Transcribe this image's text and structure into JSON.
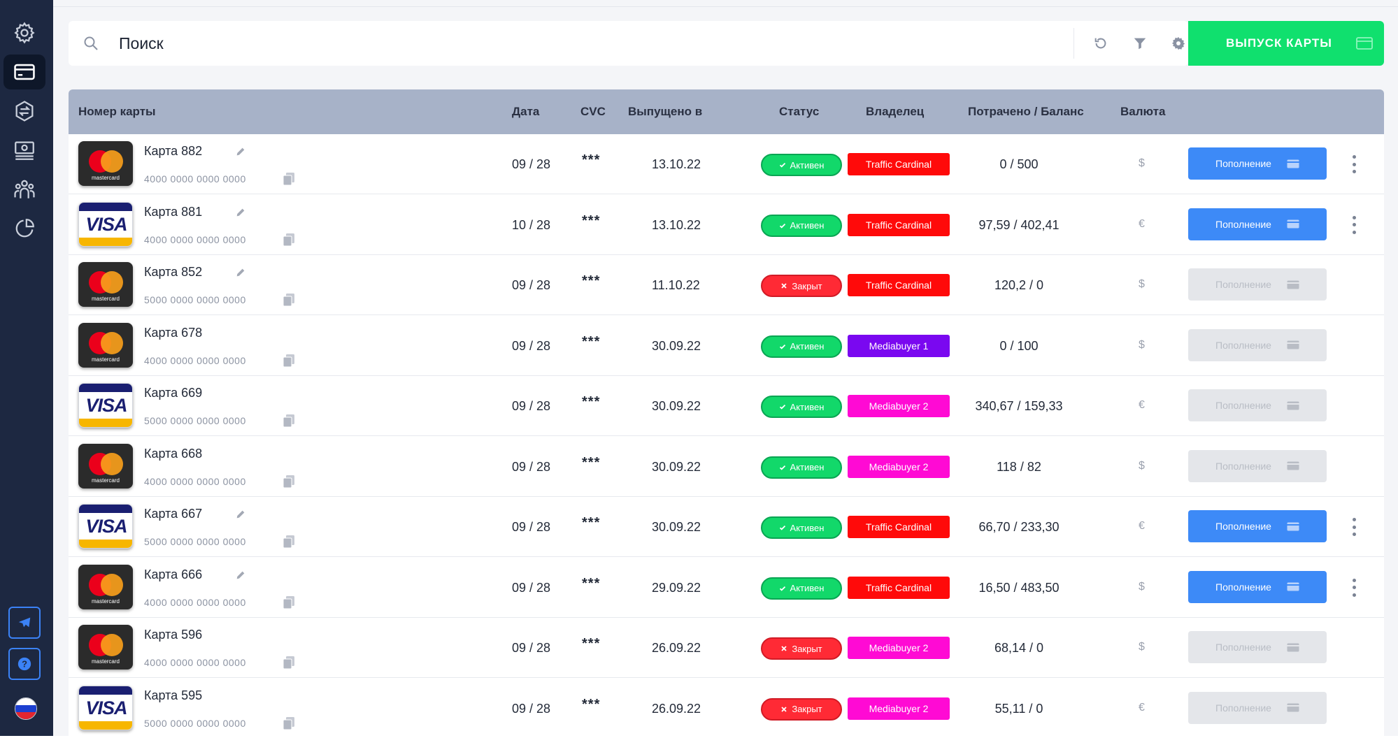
{
  "sidebar": {
    "items": [
      {
        "icon": "settings-gear-icon",
        "active": false
      },
      {
        "icon": "card-icon",
        "active": true
      },
      {
        "icon": "exchange-icon",
        "active": false
      },
      {
        "icon": "money-icon",
        "active": false
      },
      {
        "icon": "team-icon",
        "active": false
      },
      {
        "icon": "pie-chart-icon",
        "active": false
      }
    ],
    "bottom": [
      {
        "icon": "telegram-icon"
      },
      {
        "icon": "help-icon",
        "label": "?"
      },
      {
        "icon": "russia-flag-icon"
      }
    ]
  },
  "search": {
    "placeholder": "Поиск"
  },
  "toolbar": {
    "refresh_icon": "refresh-icon",
    "filter_icon": "filter-icon",
    "settings_icon": "gear-icon",
    "issue_button_label": "ВЫПУСК КАРТЫ"
  },
  "table": {
    "headers": {
      "card_number": "Номер карты",
      "date": "Дата",
      "cvc": "CVC",
      "issued": "Выпущено в",
      "status": "Статус",
      "owner": "Владелец",
      "spent_balance": "Потрачено / Баланс",
      "currency": "Валюта"
    },
    "topup_label": "Пополнение",
    "brand_labels": {
      "mastercard": "mastercard",
      "visa": "VISA"
    },
    "rows": [
      {
        "brand": "mastercard",
        "name": "Карта 882",
        "number": "4000 0000 0000 0000",
        "date": "09 / 28",
        "cvc": "***",
        "issued": "13.10.22",
        "status": "Активен",
        "status_type": "active",
        "owner": "Traffic Cardinal",
        "owner_color": "#ff0a0a",
        "spent_balance": "0 / 500",
        "currency": "$",
        "topup_enabled": true,
        "editable": true,
        "has_menu": true
      },
      {
        "brand": "visa",
        "name": "Карта 881",
        "number": "4000 0000 0000 0000",
        "date": "10 / 28",
        "cvc": "***",
        "issued": "13.10.22",
        "status": "Активен",
        "status_type": "active",
        "owner": "Traffic Cardinal",
        "owner_color": "#ff0a0a",
        "spent_balance": "97,59 / 402,41",
        "currency": "€",
        "topup_enabled": true,
        "editable": true,
        "has_menu": true
      },
      {
        "brand": "mastercard",
        "name": "Карта 852",
        "number": "5000 0000 0000 0000",
        "date": "09 / 28",
        "cvc": "***",
        "issued": "11.10.22",
        "status": "Закрыт",
        "status_type": "closed",
        "owner": "Traffic Cardinal",
        "owner_color": "#ff0a0a",
        "spent_balance": "120,2 / 0",
        "currency": "$",
        "topup_enabled": false,
        "editable": true,
        "has_menu": false
      },
      {
        "brand": "mastercard",
        "name": "Карта 678",
        "number": "4000 0000 0000 0000",
        "date": "09 / 28",
        "cvc": "***",
        "issued": "30.09.22",
        "status": "Активен",
        "status_type": "active",
        "owner": "Mediabuyer 1",
        "owner_color": "#7a08f0",
        "spent_balance": "0 / 100",
        "currency": "$",
        "topup_enabled": false,
        "editable": false,
        "has_menu": false
      },
      {
        "brand": "visa",
        "name": "Карта 669",
        "number": "5000 0000 0000 0000",
        "date": "09 / 28",
        "cvc": "***",
        "issued": "30.09.22",
        "status": "Активен",
        "status_type": "active",
        "owner": "Mediabuyer 2",
        "owner_color": "#ff0ad4",
        "spent_balance": "340,67 / 159,33",
        "currency": "€",
        "topup_enabled": false,
        "editable": false,
        "has_menu": false
      },
      {
        "brand": "mastercard",
        "name": "Карта 668",
        "number": "4000 0000 0000 0000",
        "date": "09 / 28",
        "cvc": "***",
        "issued": "30.09.22",
        "status": "Активен",
        "status_type": "active",
        "owner": "Mediabuyer 2",
        "owner_color": "#ff0ad4",
        "spent_balance": "118 / 82",
        "currency": "$",
        "topup_enabled": false,
        "editable": false,
        "has_menu": false
      },
      {
        "brand": "visa",
        "name": "Карта 667",
        "number": "5000 0000 0000 0000",
        "date": "09 / 28",
        "cvc": "***",
        "issued": "30.09.22",
        "status": "Активен",
        "status_type": "active",
        "owner": "Traffic Cardinal",
        "owner_color": "#ff0a0a",
        "spent_balance": "66,70 / 233,30",
        "currency": "€",
        "topup_enabled": true,
        "editable": true,
        "has_menu": true
      },
      {
        "brand": "mastercard",
        "name": "Карта 666",
        "number": "4000 0000 0000 0000",
        "date": "09 / 28",
        "cvc": "***",
        "issued": "29.09.22",
        "status": "Активен",
        "status_type": "active",
        "owner": "Traffic Cardinal",
        "owner_color": "#ff0a0a",
        "spent_balance": "16,50 / 483,50",
        "currency": "$",
        "topup_enabled": true,
        "editable": true,
        "has_menu": true
      },
      {
        "brand": "mastercard",
        "name": "Карта 596",
        "number": "4000 0000 0000 0000",
        "date": "09 / 28",
        "cvc": "***",
        "issued": "26.09.22",
        "status": "Закрыт",
        "status_type": "closed",
        "owner": "Mediabuyer 2",
        "owner_color": "#ff0ad4",
        "spent_balance": "68,14 / 0",
        "currency": "$",
        "topup_enabled": false,
        "editable": false,
        "has_menu": false
      },
      {
        "brand": "visa",
        "name": "Карта 595",
        "number": "5000 0000 0000 0000",
        "date": "09 / 28",
        "cvc": "***",
        "issued": "26.09.22",
        "status": "Закрыт",
        "status_type": "closed",
        "owner": "Mediabuyer 2",
        "owner_color": "#ff0ad4",
        "spent_balance": "55,11 / 0",
        "currency": "€",
        "topup_enabled": false,
        "editable": false,
        "has_menu": false
      }
    ]
  }
}
